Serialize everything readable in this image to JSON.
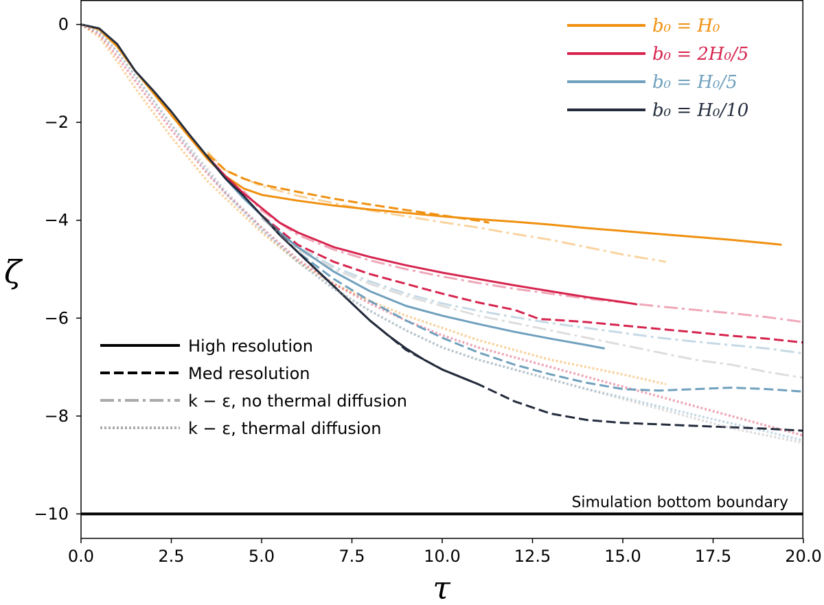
{
  "chart_data": {
    "type": "line",
    "xlabel": "τ",
    "ylabel": "ζ",
    "xlim": [
      0,
      20
    ],
    "ylim": [
      -10.5,
      0.5
    ],
    "xticks": [
      0,
      2.5,
      5,
      7.5,
      10,
      12.5,
      15,
      17.5,
      20
    ],
    "xtick_labels": [
      "0.0",
      "2.5",
      "5.0",
      "7.5",
      "10.0",
      "12.5",
      "15.0",
      "17.5",
      "20.0"
    ],
    "yticks": [
      0,
      -2,
      -4,
      -6,
      -8,
      -10
    ],
    "ytick_labels": [
      "0",
      "−2",
      "−4",
      "−6",
      "−8",
      "−10"
    ],
    "colors": {
      "H0": "#f0900f",
      "2H0_5": "#d6244e",
      "H0_5": "#6fa0bd",
      "H0_10": "#232b3c",
      "model": "#a9a9a9"
    },
    "color_legend": [
      {
        "key": "H0",
        "label": "b₀ = H₀"
      },
      {
        "key": "2H0_5",
        "label": "b₀ = 2H₀/5"
      },
      {
        "key": "H0_5",
        "label": "b₀ = H₀/5"
      },
      {
        "key": "H0_10",
        "label": "b₀ = H₀/10"
      }
    ],
    "style_legend": [
      {
        "style": "solid",
        "label": "High resolution"
      },
      {
        "style": "dashed",
        "label": "Med resolution"
      },
      {
        "style": "dashdot",
        "label": "k − ε, no thermal diffusion"
      },
      {
        "style": "dotted",
        "label": "k − ε, thermal diffusion"
      }
    ],
    "annotation": {
      "text": "Simulation bottom boundary",
      "y": -10
    },
    "series": [
      {
        "name": "H0 high",
        "color": "H0",
        "style": "solid",
        "x": [
          0,
          0.5,
          1,
          1.5,
          2,
          2.5,
          3,
          3.5,
          4,
          4.5,
          5,
          6,
          7,
          8,
          9,
          10,
          11,
          12,
          13,
          14,
          15,
          16,
          17,
          18,
          19,
          19.4
        ],
        "y": [
          0,
          -0.1,
          -0.45,
          -0.95,
          -1.4,
          -1.85,
          -2.3,
          -2.75,
          -3.1,
          -3.35,
          -3.48,
          -3.6,
          -3.7,
          -3.78,
          -3.85,
          -3.92,
          -3.98,
          -4.03,
          -4.09,
          -4.16,
          -4.22,
          -4.28,
          -4.34,
          -4.4,
          -4.47,
          -4.5
        ]
      },
      {
        "name": "H0 med",
        "color": "H0",
        "style": "dashed",
        "x": [
          3.5,
          4,
          4.5,
          5,
          6,
          7,
          8,
          9,
          10,
          11,
          11.3
        ],
        "y": [
          -2.65,
          -2.98,
          -3.15,
          -3.27,
          -3.42,
          -3.56,
          -3.68,
          -3.79,
          -3.9,
          -4.01,
          -4.05
        ]
      },
      {
        "name": "H0 k-eps no diff",
        "color": "H0",
        "style": "dashdot",
        "faded": true,
        "x": [
          3.5,
          4,
          5,
          6,
          7,
          8,
          9,
          10,
          11,
          12,
          13,
          14,
          15,
          16.2
        ],
        "y": [
          -2.6,
          -2.98,
          -3.3,
          -3.5,
          -3.65,
          -3.8,
          -3.92,
          -4.04,
          -4.15,
          -4.28,
          -4.4,
          -4.55,
          -4.7,
          -4.85
        ]
      },
      {
        "name": "H0 k-eps diff",
        "color": "H0",
        "style": "dotted",
        "faded": true,
        "x": [
          0,
          0.5,
          1,
          1.5,
          2,
          2.5,
          3,
          3.5,
          4,
          5,
          6,
          7,
          8,
          9,
          10,
          11,
          12,
          13,
          14,
          15,
          16.2
        ],
        "y": [
          0,
          -0.25,
          -0.75,
          -1.3,
          -1.8,
          -2.3,
          -2.75,
          -3.2,
          -3.55,
          -4.25,
          -4.85,
          -5.3,
          -5.65,
          -5.95,
          -6.2,
          -6.45,
          -6.65,
          -6.85,
          -7.0,
          -7.15,
          -7.35
        ]
      },
      {
        "name": "2H0/5 high",
        "color": "2H0_5",
        "style": "solid",
        "x": [
          3.5,
          4,
          4.5,
          5,
          5.5,
          6,
          7,
          8,
          9,
          10,
          11,
          12,
          13,
          14,
          15,
          15.4
        ],
        "y": [
          -2.7,
          -3.1,
          -3.45,
          -3.75,
          -4.05,
          -4.25,
          -4.55,
          -4.75,
          -4.92,
          -5.07,
          -5.2,
          -5.33,
          -5.45,
          -5.57,
          -5.67,
          -5.72
        ]
      },
      {
        "name": "2H0/5 med",
        "color": "2H0_5",
        "style": "dashed",
        "x": [
          5,
          6,
          7,
          8,
          9,
          10,
          11,
          12,
          12.7,
          13,
          14,
          15,
          16,
          17,
          18,
          19,
          20
        ],
        "y": [
          -3.9,
          -4.5,
          -4.85,
          -5.1,
          -5.3,
          -5.5,
          -5.68,
          -5.83,
          -6.02,
          -6.03,
          -6.08,
          -6.15,
          -6.22,
          -6.29,
          -6.36,
          -6.42,
          -6.5
        ]
      },
      {
        "name": "2H0/5 k-eps no diff",
        "color": "2H0_5",
        "style": "dashdot",
        "faded": true,
        "x": [
          4.5,
          5,
          6,
          7,
          8,
          9,
          10,
          11,
          12,
          13,
          14,
          15,
          16,
          17,
          18,
          19,
          20
        ],
        "y": [
          -3.4,
          -3.8,
          -4.3,
          -4.6,
          -4.82,
          -5.0,
          -5.15,
          -5.28,
          -5.4,
          -5.5,
          -5.6,
          -5.68,
          -5.76,
          -5.83,
          -5.9,
          -5.98,
          -6.08
        ]
      },
      {
        "name": "2H0/5 k-eps diff",
        "color": "2H0_5",
        "style": "dotted",
        "faded": true,
        "x": [
          0,
          0.5,
          1,
          1.5,
          2,
          2.5,
          3,
          3.5,
          4,
          5,
          6,
          7,
          8,
          9,
          10,
          11,
          12,
          13,
          14,
          15,
          16,
          17,
          18,
          19,
          20
        ],
        "y": [
          0,
          -0.2,
          -0.65,
          -1.15,
          -1.65,
          -2.15,
          -2.6,
          -3.05,
          -3.45,
          -4.15,
          -4.8,
          -5.3,
          -5.7,
          -6.05,
          -6.35,
          -6.6,
          -6.8,
          -7.0,
          -7.2,
          -7.4,
          -7.6,
          -7.8,
          -8.0,
          -8.2,
          -8.4
        ]
      },
      {
        "name": "H0/5 high",
        "color": "H0_5",
        "style": "solid",
        "x": [
          3.5,
          4,
          4.5,
          5,
          5.5,
          6,
          6.5,
          7,
          8,
          9,
          10,
          11,
          12,
          13,
          14,
          14.5
        ],
        "y": [
          -2.7,
          -3.15,
          -3.55,
          -3.9,
          -4.25,
          -4.55,
          -4.8,
          -5.05,
          -5.45,
          -5.75,
          -5.95,
          -6.12,
          -6.28,
          -6.42,
          -6.55,
          -6.62
        ]
      },
      {
        "name": "H0/5 med",
        "color": "H0_5",
        "style": "dashed",
        "x": [
          5,
          6,
          7,
          8,
          9,
          10,
          11,
          12,
          13,
          14,
          15,
          16,
          17,
          18,
          19,
          20
        ],
        "y": [
          -3.9,
          -4.65,
          -5.2,
          -5.65,
          -6.05,
          -6.4,
          -6.7,
          -6.95,
          -7.15,
          -7.32,
          -7.45,
          -7.48,
          -7.45,
          -7.42,
          -7.45,
          -7.5
        ]
      },
      {
        "name": "H0/5 k-eps no diff",
        "color": "H0_5",
        "style": "dashdot",
        "faded": true,
        "x": [
          5,
          6,
          7,
          8,
          9,
          10,
          11,
          12,
          13,
          14,
          15,
          16,
          17,
          18,
          19,
          20
        ],
        "y": [
          -3.95,
          -4.55,
          -4.95,
          -5.25,
          -5.5,
          -5.7,
          -5.85,
          -5.98,
          -6.1,
          -6.2,
          -6.3,
          -6.4,
          -6.48,
          -6.55,
          -6.62,
          -6.72
        ]
      },
      {
        "name": "H0/5 k-eps diff",
        "color": "H0_5",
        "style": "dotted",
        "faded": true,
        "x": [
          0,
          0.5,
          1,
          1.5,
          2,
          2.5,
          3,
          3.5,
          4,
          5,
          6,
          7,
          8,
          9,
          10,
          11,
          12,
          13,
          14,
          15,
          16,
          17,
          18,
          19,
          20
        ],
        "y": [
          0,
          -0.15,
          -0.55,
          -1.05,
          -1.55,
          -2.05,
          -2.55,
          -3.0,
          -3.45,
          -4.2,
          -4.85,
          -5.4,
          -5.85,
          -6.25,
          -6.6,
          -6.85,
          -7.05,
          -7.25,
          -7.45,
          -7.62,
          -7.8,
          -7.98,
          -8.15,
          -8.32,
          -8.5
        ]
      },
      {
        "name": "H0/10 high",
        "color": "H0_10",
        "style": "solid",
        "x": [
          0,
          0.5,
          1,
          1.5,
          2,
          2.5,
          3,
          3.5,
          4,
          4.5,
          5,
          5.5,
          6,
          6.5,
          7,
          7.5,
          8,
          8.5,
          9,
          9.5,
          10,
          10.5,
          11
        ],
        "y": [
          0,
          -0.08,
          -0.4,
          -0.95,
          -1.35,
          -1.78,
          -2.25,
          -2.7,
          -3.15,
          -3.5,
          -3.9,
          -4.3,
          -4.65,
          -5.0,
          -5.35,
          -5.7,
          -6.05,
          -6.35,
          -6.62,
          -6.85,
          -7.05,
          -7.2,
          -7.35
        ]
      },
      {
        "name": "H0/10 med",
        "color": "H0_10",
        "style": "dashed",
        "x": [
          5,
          6,
          7,
          8,
          9,
          10,
          11,
          12,
          13,
          14,
          15,
          16,
          17,
          18,
          19,
          20
        ],
        "y": [
          -3.9,
          -4.65,
          -5.35,
          -6.05,
          -6.65,
          -7.05,
          -7.35,
          -7.7,
          -7.95,
          -8.08,
          -8.14,
          -8.17,
          -8.2,
          -8.23,
          -8.26,
          -8.3
        ]
      },
      {
        "name": "H0/10 k-eps no diff",
        "color": "model",
        "style": "dashdot",
        "faded": true,
        "x": [
          5,
          6,
          7,
          8,
          9,
          10,
          11,
          12,
          13,
          14,
          15,
          16,
          17,
          18,
          19,
          20
        ],
        "y": [
          -3.95,
          -4.6,
          -5.0,
          -5.3,
          -5.55,
          -5.75,
          -5.95,
          -6.1,
          -6.25,
          -6.4,
          -6.55,
          -6.7,
          -6.85,
          -6.95,
          -7.1,
          -7.22
        ]
      },
      {
        "name": "H0/10 k-eps diff",
        "color": "model",
        "style": "dotted",
        "faded": true,
        "x": [
          0,
          0.5,
          1,
          1.5,
          2,
          2.5,
          3,
          3.5,
          4,
          5,
          6,
          7,
          8,
          9,
          10,
          11,
          12,
          13,
          14,
          15,
          16,
          17,
          18,
          19,
          20
        ],
        "y": [
          0,
          -0.15,
          -0.55,
          -1.05,
          -1.55,
          -2.05,
          -2.5,
          -2.95,
          -3.4,
          -4.15,
          -4.85,
          -5.4,
          -5.85,
          -6.25,
          -6.6,
          -6.85,
          -7.05,
          -7.25,
          -7.45,
          -7.65,
          -7.85,
          -8.05,
          -8.25,
          -8.4,
          -8.55
        ]
      }
    ]
  }
}
